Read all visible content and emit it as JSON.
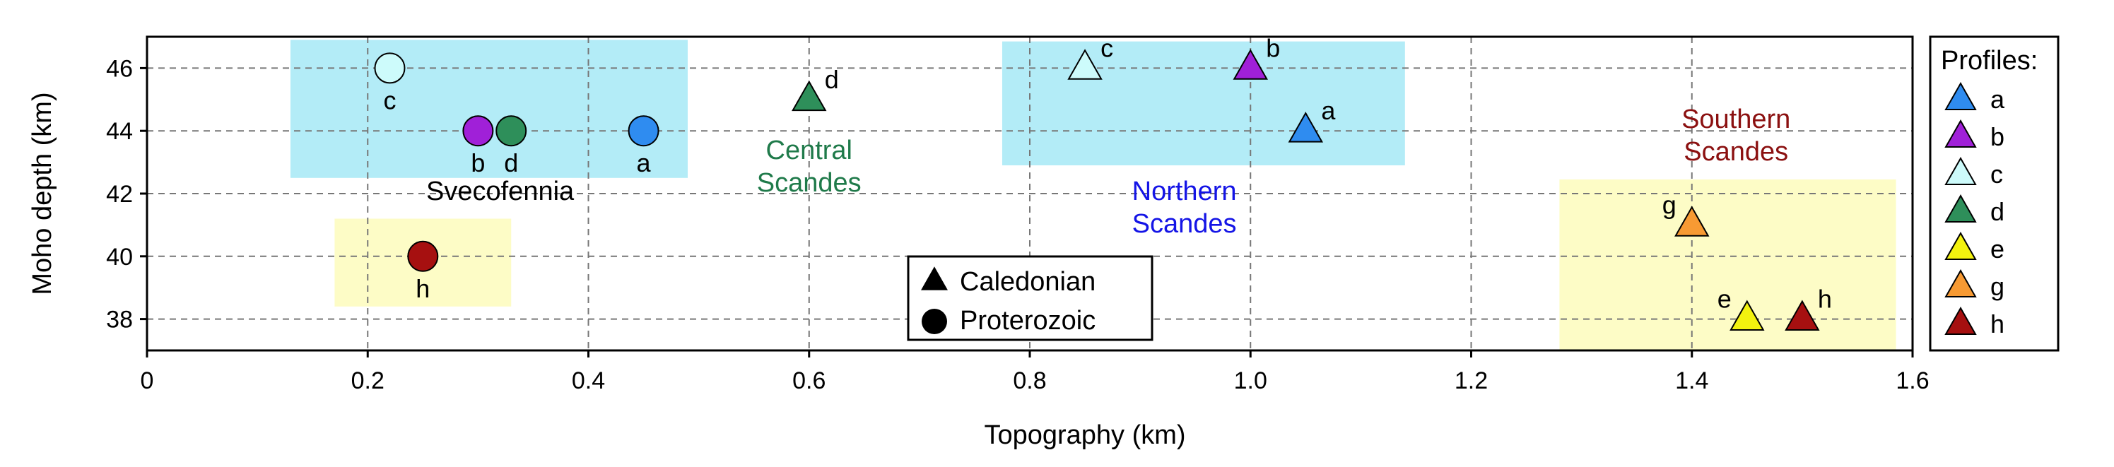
{
  "chart_data": {
    "type": "scatter",
    "xlabel": "Topography (km)",
    "ylabel": "Moho depth (km)",
    "xlim": [
      0,
      1.6
    ],
    "ylim": [
      37,
      47
    ],
    "x_ticks": [
      0,
      0.2,
      0.4,
      0.6,
      0.8,
      1.0,
      1.2,
      1.4,
      1.6
    ],
    "x_tick_labels": [
      "0",
      "0.2",
      "0.4",
      "0.6",
      "0.8",
      "1.0",
      "1.2",
      "1.4",
      "1.6"
    ],
    "y_ticks": [
      38,
      40,
      42,
      44,
      46
    ],
    "y_tick_labels": [
      "38",
      "40",
      "42",
      "44",
      "46"
    ],
    "grid": true,
    "regions": [
      {
        "label": "Svecofennia",
        "x": [
          0.13,
          0.49
        ],
        "y": [
          42.5,
          46.9
        ],
        "color": "#b3ecf7",
        "label_color": "#000000",
        "label_at": [
          0.32,
          41.8
        ]
      },
      {
        "label": "",
        "x": [
          0.17,
          0.33
        ],
        "y": [
          38.4,
          41.2
        ],
        "color": "#fdfcc6",
        "label_color": "#000000",
        "label_at": [
          0,
          0
        ]
      },
      {
        "label": "Central\nScandes",
        "x": [
          0,
          0
        ],
        "y": [
          0,
          0
        ],
        "color": "none",
        "label_color": "#1f7a4a",
        "label_at": [
          0.6,
          43.1
        ]
      },
      {
        "label": "Northern\nScandes",
        "x": [
          0.775,
          1.14
        ],
        "y": [
          42.9,
          46.85
        ],
        "color": "#b3ecf7",
        "label_color": "#1414e6",
        "label_at": [
          0.94,
          41.8
        ]
      },
      {
        "label": "Southern\nScandes",
        "x": [
          1.28,
          1.585
        ],
        "y": [
          37,
          42.45
        ],
        "color": "#fdfcc6",
        "label_color": "#8b1010",
        "label_at": [
          1.44,
          44.1
        ]
      }
    ],
    "series": [
      {
        "marker": "triangle",
        "profile": "a",
        "x": 1.05,
        "y": 44,
        "color": "#2f8cf0",
        "label": "a",
        "label_pos": "upper-right"
      },
      {
        "marker": "triangle",
        "profile": "b",
        "x": 1.0,
        "y": 46,
        "color": "#a020d8",
        "label": "b",
        "label_pos": "upper-right"
      },
      {
        "marker": "triangle",
        "profile": "c",
        "x": 0.85,
        "y": 46,
        "color": "#cdfbfb",
        "label": "c",
        "label_pos": "upper-right"
      },
      {
        "marker": "triangle",
        "profile": "d",
        "x": 0.6,
        "y": 45,
        "color": "#2e8f5a",
        "label": "d",
        "label_pos": "upper-right"
      },
      {
        "marker": "triangle",
        "profile": "g",
        "x": 1.4,
        "y": 41,
        "color": "#f79a33",
        "label": "g",
        "label_pos": "upper-left"
      },
      {
        "marker": "triangle",
        "profile": "e",
        "x": 1.45,
        "y": 38,
        "color": "#f3f20f",
        "label": "e",
        "label_pos": "upper-left"
      },
      {
        "marker": "triangle",
        "profile": "h",
        "x": 1.5,
        "y": 38,
        "color": "#a61010",
        "label": "h",
        "label_pos": "upper-right"
      },
      {
        "marker": "circle",
        "profile": "c",
        "x": 0.22,
        "y": 46,
        "color": "#cdfbfb",
        "label": "c",
        "label_pos": "below"
      },
      {
        "marker": "circle",
        "profile": "b",
        "x": 0.3,
        "y": 44,
        "color": "#a020d8",
        "label": "b",
        "label_pos": "below"
      },
      {
        "marker": "circle",
        "profile": "d",
        "x": 0.33,
        "y": 44,
        "color": "#2e8f5a",
        "label": "d",
        "label_pos": "below"
      },
      {
        "marker": "circle",
        "profile": "a",
        "x": 0.45,
        "y": 44,
        "color": "#2f8cf0",
        "label": "a",
        "label_pos": "below"
      },
      {
        "marker": "circle",
        "profile": "h",
        "x": 0.25,
        "y": 40,
        "color": "#a61010",
        "label": "h",
        "label_pos": "below"
      }
    ],
    "marker_legend": {
      "placement": "bottom-center",
      "entries": [
        {
          "marker": "triangle",
          "label": "Caledonian"
        },
        {
          "marker": "circle",
          "label": "Proterozoic"
        }
      ]
    },
    "profile_legend": {
      "placement": "right",
      "title": "Profiles:",
      "entries": [
        {
          "label": "a",
          "color": "#2f8cf0"
        },
        {
          "label": "b",
          "color": "#a020d8"
        },
        {
          "label": "c",
          "color": "#cdfbfb"
        },
        {
          "label": "d",
          "color": "#2e8f5a"
        },
        {
          "label": "e",
          "color": "#f3f20f"
        },
        {
          "label": "g",
          "color": "#f79a33"
        },
        {
          "label": "h",
          "color": "#a61010"
        }
      ]
    }
  }
}
